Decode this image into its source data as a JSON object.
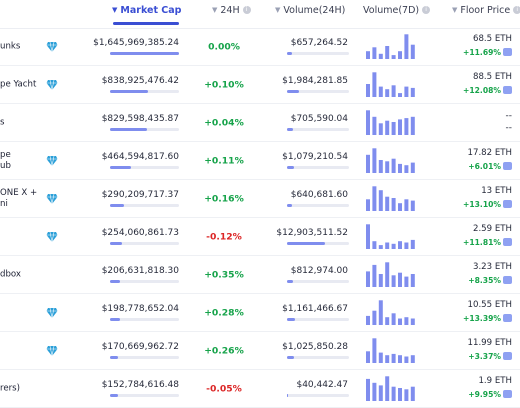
{
  "colors": {
    "accent": "#3a4ed3",
    "positive": "#16a34a",
    "negative": "#dc2626",
    "bar": "#7f8dee",
    "gem": "#2a9fd8"
  },
  "headers": {
    "market_cap": "Market Cap",
    "change_24h": "24H",
    "volume_24h": "Volume(24H)",
    "volume_7d": "Volume(7D)",
    "floor_price": "Floor Price"
  },
  "rows": [
    {
      "name": "unks",
      "gem": true,
      "market_cap": "$1,645,969,385.24",
      "mcap_fill": 1.0,
      "change": "0.00%",
      "change_dir": "neu",
      "volume": "$657,264.52",
      "vol_fill": 0.08,
      "spark": [
        0.3,
        0.45,
        0.2,
        0.5,
        0.15,
        0.3,
        0.95,
        0.55
      ],
      "floor": "68.5 ETH",
      "floor_change": "+11.69%"
    },
    {
      "name": "pe Yacht",
      "gem": true,
      "market_cap": "$838,925,476.42",
      "mcap_fill": 0.55,
      "change": "+0.10%",
      "change_dir": "pos",
      "volume": "$1,984,281.85",
      "vol_fill": 0.2,
      "spark": [
        0.5,
        0.95,
        0.4,
        0.3,
        0.45,
        0.15,
        0.4,
        0.35
      ],
      "floor": "88.5 ETH",
      "floor_change": "+12.08%"
    },
    {
      "name": "s",
      "gem": false,
      "market_cap": "$829,598,435.87",
      "mcap_fill": 0.53,
      "change": "+0.04%",
      "change_dir": "pos",
      "volume": "$705,590.04",
      "vol_fill": 0.09,
      "spark": [
        0.95,
        0.7,
        0.45,
        0.55,
        0.5,
        0.6,
        0.65,
        0.7
      ],
      "floor": "--",
      "floor_change": "--"
    },
    {
      "name": "pe\nub",
      "gem": true,
      "market_cap": "$464,594,817.60",
      "mcap_fill": 0.3,
      "change": "+0.11%",
      "change_dir": "pos",
      "volume": "$1,079,210.54",
      "vol_fill": 0.12,
      "spark": [
        0.7,
        0.95,
        0.5,
        0.45,
        0.55,
        0.35,
        0.3,
        0.4
      ],
      "floor": "17.82 ETH",
      "floor_change": "+6.01%"
    },
    {
      "name": "ONE X +\nni",
      "gem": true,
      "market_cap": "$290,209,717.37",
      "mcap_fill": 0.2,
      "change": "+0.16%",
      "change_dir": "pos",
      "volume": "$640,681.60",
      "vol_fill": 0.08,
      "spark": [
        0.45,
        0.95,
        0.8,
        0.55,
        0.5,
        0.3,
        0.45,
        0.4
      ],
      "floor": "13 ETH",
      "floor_change": "+13.10%"
    },
    {
      "name": "",
      "gem": true,
      "market_cap": "$254,060,861.73",
      "mcap_fill": 0.18,
      "change": "-0.12%",
      "change_dir": "neg",
      "volume": "$12,903,511.52",
      "vol_fill": 0.62,
      "spark": [
        0.95,
        0.3,
        0.15,
        0.25,
        0.2,
        0.3,
        0.25,
        0.35
      ],
      "floor": "2.59 ETH",
      "floor_change": "+11.81%"
    },
    {
      "name": "dbox",
      "gem": false,
      "market_cap": "$206,631,818.30",
      "mcap_fill": 0.15,
      "change": "+0.35%",
      "change_dir": "pos",
      "volume": "$812,974.00",
      "vol_fill": 0.1,
      "spark": [
        0.6,
        0.85,
        0.5,
        0.95,
        0.45,
        0.55,
        0.4,
        0.5
      ],
      "floor": "3.23 ETH",
      "floor_change": "+8.35%"
    },
    {
      "name": "",
      "gem": true,
      "market_cap": "$198,778,652.04",
      "mcap_fill": 0.14,
      "change": "+0.28%",
      "change_dir": "pos",
      "volume": "$1,161,466.67",
      "vol_fill": 0.13,
      "spark": [
        0.35,
        0.55,
        0.95,
        0.3,
        0.45,
        0.25,
        0.3,
        0.25
      ],
      "floor": "10.55 ETH",
      "floor_change": "+13.39%"
    },
    {
      "name": "",
      "gem": true,
      "market_cap": "$170,669,962.72",
      "mcap_fill": 0.12,
      "change": "+0.26%",
      "change_dir": "pos",
      "volume": "$1,025,850.28",
      "vol_fill": 0.12,
      "spark": [
        0.45,
        0.95,
        0.4,
        0.3,
        0.35,
        0.3,
        0.25,
        0.3
      ],
      "floor": "11.99 ETH",
      "floor_change": "+3.37%"
    },
    {
      "name": "rers)",
      "gem": false,
      "market_cap": "$152,784,616.48",
      "mcap_fill": 0.11,
      "change": "-0.05%",
      "change_dir": "neg",
      "volume": "$40,442.47",
      "vol_fill": 0.02,
      "spark": [
        0.85,
        0.7,
        0.6,
        0.95,
        0.55,
        0.5,
        0.45,
        0.55
      ],
      "floor": "1.9 ETH",
      "floor_change": "+9.95%"
    }
  ]
}
